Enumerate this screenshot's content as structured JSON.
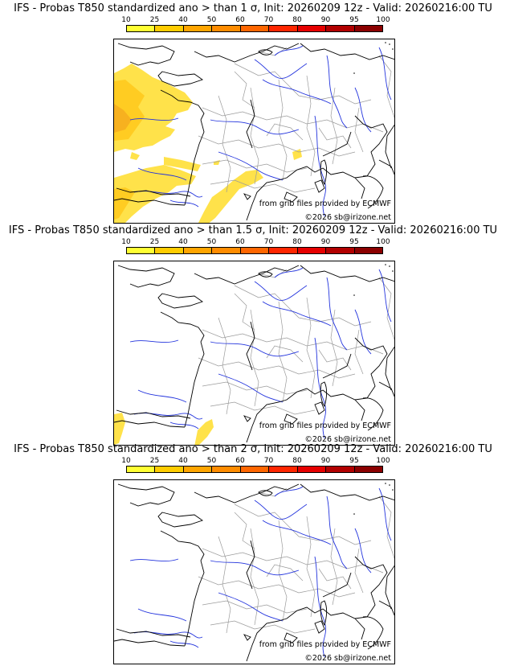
{
  "palette": {
    "legend_colors": [
      "#ffff33",
      "#ffcc00",
      "#ffa500",
      "#ff8c00",
      "#ff6600",
      "#ff2600",
      "#e60000",
      "#b20000",
      "#8b0000"
    ],
    "prob_light": "#ffe24a",
    "prob_mid": "#ffcc22",
    "prob_dark": "#f7b11f",
    "rivers": "#2233dd",
    "borders": "#9a9a9a",
    "coast": "#000000"
  },
  "legend": {
    "ticks": [
      "10",
      "25",
      "40",
      "50",
      "60",
      "70",
      "80",
      "90",
      "95",
      "100"
    ]
  },
  "panels": [
    {
      "title": "IFS - Probas T850  standardized ano > than 1 σ, Init: 20260209 12z - Valid: 20260216:00 TU",
      "threshold": "1 σ",
      "source_credit": "from grib files provided by ECMWF",
      "copyright": "©2026 sb@irizone.net"
    },
    {
      "title": "IFS - Probas T850  standardized ano > than 1.5 σ, Init: 20260209 12z - Valid: 20260216:00 TU",
      "threshold": "1.5 σ",
      "source_credit": "from grib files provided by ECMWF",
      "copyright": "©2026 sb@irizone.net"
    },
    {
      "title": "IFS - Probas T850  standardized ano > than 2 σ, Init: 20260209 12z - Valid: 20260216:00 TU",
      "threshold": "2 σ",
      "source_credit": "from grib files provided by ECMWF",
      "copyright": "©2026 sb@irizone.net"
    }
  ]
}
